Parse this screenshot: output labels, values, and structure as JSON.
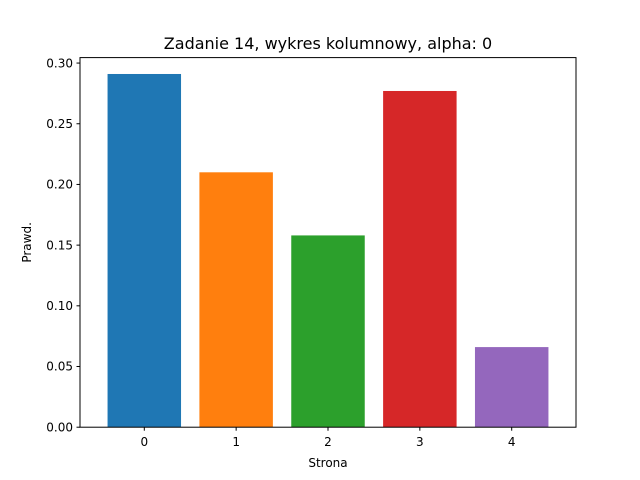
{
  "chart_data": {
    "type": "bar",
    "title": "Zadanie 14, wykres kolumnowy, alpha: 0",
    "xlabel": "Strona",
    "ylabel": "Prawd.",
    "categories": [
      "0",
      "1",
      "2",
      "3",
      "4"
    ],
    "values": [
      0.291,
      0.21,
      0.158,
      0.277,
      0.066
    ],
    "colors": [
      "#1f77b4",
      "#ff7f0e",
      "#2ca02c",
      "#d62728",
      "#9467bd"
    ],
    "ylim": [
      0,
      0.3045
    ],
    "yticks": [
      "0.00",
      "0.05",
      "0.10",
      "0.15",
      "0.20",
      "0.25",
      "0.30"
    ],
    "grid": false,
    "legend": null
  }
}
